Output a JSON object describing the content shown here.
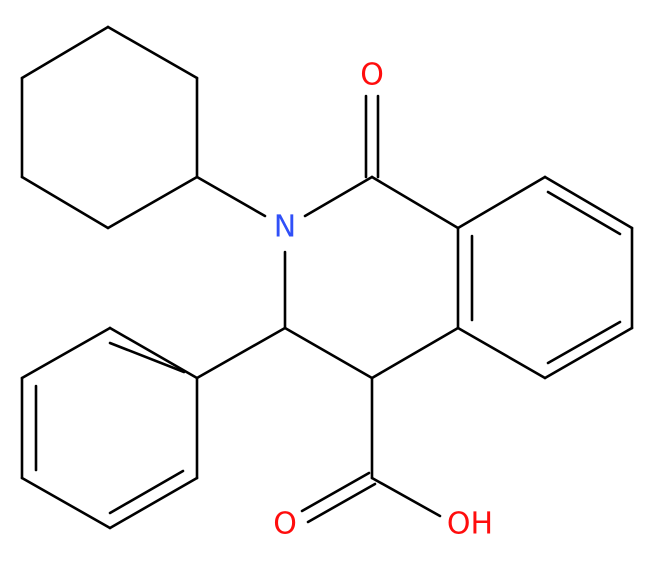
{
  "atoms": {
    "o_ketone": "O",
    "n": "N",
    "o_acid": "O",
    "oh": "OH"
  }
}
